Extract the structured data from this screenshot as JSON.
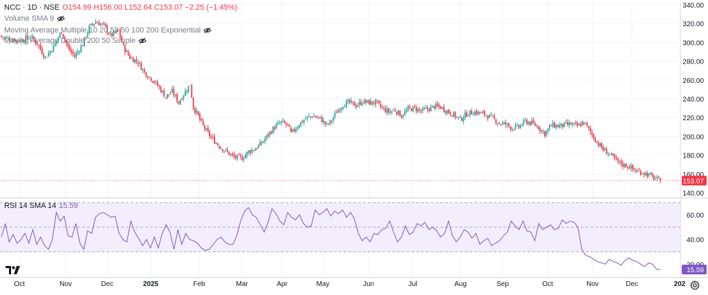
{
  "legend": {
    "symbol": "NCC · 1D · NSE",
    "ohlc": "O154.99  H156.00  L152.64  C153.07  −2.25 (−1.45%)",
    "volume": "Volume SMA 9",
    "ma_multiple": "Moving Average Multiple 10 20 50 50 100 200 Exponential",
    "ma_double": "Moving Average Double 200 50 Simple",
    "rsi_label": "RSI 14 SMA 14",
    "rsi_value": "15.59"
  },
  "icons": {
    "eye": "eye-hidden-icon",
    "logo": "tradingview-logo-icon",
    "settings": "gear-icon"
  },
  "colors": {
    "up": "#26a69a",
    "down": "#f23645",
    "rsi_line": "#7e57c2",
    "rsi_band": "#f3eefc",
    "last_price_bg": "#f23645",
    "rsi_badge_bg": "#7e57c2"
  },
  "chart_data": [
    {
      "type": "candlestick",
      "title": "NCC · 1D · NSE",
      "ylim": [
        135,
        345
      ],
      "y_ticks": [
        140,
        160,
        180,
        200,
        220,
        240,
        260,
        280,
        300,
        320,
        340
      ],
      "last_price": "153.07",
      "x_labels": [
        "Oct",
        "Nov",
        "Dec",
        "2025",
        "Feb",
        "Mar",
        "Apr",
        "May",
        "Jun",
        "Jul",
        "Aug",
        "Sep",
        "Oct",
        "Nov",
        "Dec",
        "202"
      ],
      "close_path": [
        [
          0,
          306
        ],
        [
          6,
          303
        ],
        [
          12,
          302
        ],
        [
          18,
          306
        ],
        [
          22,
          299
        ],
        [
          27,
          284
        ],
        [
          32,
          295
        ],
        [
          37,
          312
        ],
        [
          41,
          294
        ],
        [
          45,
          285
        ],
        [
          50,
          298
        ],
        [
          54,
          316
        ],
        [
          58,
          322
        ],
        [
          63,
          318
        ],
        [
          67,
          307
        ],
        [
          72,
          312
        ],
        [
          75,
          295
        ],
        [
          79,
          284
        ],
        [
          84,
          279
        ],
        [
          88,
          268
        ],
        [
          93,
          260
        ],
        [
          97,
          252
        ],
        [
          101,
          242
        ],
        [
          105,
          248
        ],
        [
          109,
          236
        ],
        [
          112,
          245
        ],
        [
          116,
          255
        ],
        [
          118,
          231
        ],
        [
          121,
          222
        ],
        [
          123,
          214
        ],
        [
          127,
          203
        ],
        [
          131,
          195
        ],
        [
          135,
          188
        ],
        [
          139,
          183
        ],
        [
          143,
          178
        ],
        [
          148,
          177
        ],
        [
          152,
          184
        ],
        [
          156,
          187
        ],
        [
          160,
          193
        ],
        [
          164,
          202
        ],
        [
          168,
          210
        ],
        [
          172,
          215
        ],
        [
          176,
          212
        ],
        [
          178,
          203
        ],
        [
          183,
          213
        ],
        [
          187,
          219
        ],
        [
          191,
          222
        ],
        [
          196,
          219
        ],
        [
          200,
          212
        ],
        [
          203,
          217
        ],
        [
          206,
          226
        ],
        [
          210,
          234
        ],
        [
          214,
          236
        ],
        [
          218,
          233
        ],
        [
          222,
          237
        ],
        [
          226,
          236
        ],
        [
          230,
          236
        ],
        [
          234,
          230
        ],
        [
          238,
          226
        ],
        [
          242,
          228
        ],
        [
          246,
          222
        ],
        [
          250,
          229
        ],
        [
          254,
          230
        ],
        [
          258,
          227
        ],
        [
          262,
          229
        ],
        [
          266,
          232
        ],
        [
          270,
          231
        ],
        [
          274,
          227
        ],
        [
          278,
          223
        ],
        [
          282,
          218
        ],
        [
          286,
          224
        ],
        [
          290,
          226
        ],
        [
          294,
          225
        ],
        [
          298,
          223
        ],
        [
          302,
          219
        ],
        [
          306,
          214
        ],
        [
          310,
          213
        ],
        [
          314,
          209
        ],
        [
          318,
          210
        ],
        [
          322,
          216
        ],
        [
          326,
          214
        ],
        [
          330,
          210
        ],
        [
          334,
          203
        ],
        [
          338,
          212
        ],
        [
          342,
          211
        ],
        [
          346,
          212
        ],
        [
          350,
          213
        ],
        [
          354,
          211
        ],
        [
          358,
          215
        ],
        [
          362,
          205
        ],
        [
          366,
          194
        ],
        [
          370,
          186
        ],
        [
          374,
          181
        ],
        [
          378,
          174
        ],
        [
          382,
          170
        ],
        [
          386,
          168
        ],
        [
          390,
          163
        ],
        [
          394,
          162
        ],
        [
          398,
          159
        ],
        [
          402,
          155
        ],
        [
          405,
          153.07
        ]
      ]
    },
    {
      "type": "line",
      "title": "RSI 14 SMA 14",
      "ylim": [
        9.5,
        73.5
      ],
      "y_ticks": [
        20,
        40,
        60
      ],
      "band": [
        30,
        70
      ],
      "midline": 50,
      "last_value": "15.59",
      "values": [
        42,
        53,
        38,
        44,
        37,
        40,
        45,
        37,
        48,
        36,
        42,
        35,
        32,
        40,
        62,
        55,
        59,
        43,
        42,
        53,
        37,
        32,
        47,
        45,
        58,
        61,
        62,
        60,
        58,
        59,
        45,
        40,
        38,
        55,
        46,
        41,
        35,
        40,
        33,
        42,
        33,
        45,
        52,
        46,
        32,
        48,
        36,
        45,
        40,
        39,
        37,
        33,
        31,
        32,
        36,
        40,
        42,
        38,
        36,
        36,
        43,
        55,
        63,
        66,
        60,
        58,
        52,
        46,
        54,
        65,
        61,
        55,
        52,
        62,
        58,
        56,
        60,
        53,
        50,
        51,
        64,
        60,
        62,
        65,
        59,
        63,
        61,
        64,
        58,
        62,
        57,
        45,
        39,
        42,
        38,
        45,
        44,
        48,
        49,
        55,
        46,
        38,
        42,
        51,
        44,
        46,
        53,
        51,
        54,
        48,
        50,
        47,
        42,
        45,
        55,
        43,
        38,
        42,
        48,
        46,
        41,
        45,
        36,
        39,
        41,
        35,
        37,
        39,
        43,
        46,
        55,
        51,
        48,
        55,
        47,
        46,
        39,
        53,
        48,
        50,
        52,
        48,
        49,
        56,
        53,
        55,
        54,
        50,
        32,
        27,
        26,
        24,
        22,
        21,
        20,
        24,
        22,
        21,
        19,
        23,
        25,
        23,
        22,
        20,
        18,
        21,
        20,
        16,
        15.59
      ]
    }
  ]
}
